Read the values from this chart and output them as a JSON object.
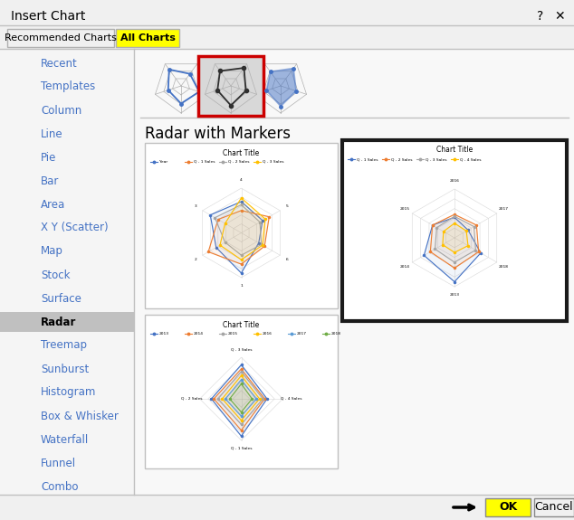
{
  "title": "Insert Chart",
  "tab_recommended": "Recommended Charts",
  "tab_all": "All Charts",
  "sidebar_items": [
    "Recent",
    "Templates",
    "Column",
    "Line",
    "Pie",
    "Bar",
    "Area",
    "X Y (Scatter)",
    "Map",
    "Stock",
    "Surface",
    "Radar",
    "Treemap",
    "Sunburst",
    "Histogram",
    "Box & Whisker",
    "Waterfall",
    "Funnel",
    "Combo"
  ],
  "section_title": "Radar with Markers",
  "chart_title": "Chart Title",
  "bg_dialog": "#f0f0f0",
  "bg_white": "#ffffff",
  "selected_tab_color": "#ffff00",
  "ok_color": "#ffff00",
  "ok_text": "OK",
  "cancel_text": "Cancel",
  "sidebar_selected": "Radar",
  "icon_radar_colors": [
    "#4472c4",
    "#a0a0a0",
    "#2f2f2f"
  ],
  "chart1_colors": [
    "#4472c4",
    "#ed7d31",
    "#a5a5a5",
    "#ffc000"
  ],
  "chart1_legends": [
    "Year",
    "Q - 1 Sales",
    "Q - 2 Sales",
    "Q - 3 Sales"
  ],
  "chart2_colors": [
    "#4472c4",
    "#ed7d31",
    "#a5a5a5",
    "#ffc000"
  ],
  "chart2_legends": [
    "Q - 1 Sales",
    "Q - 2 Sales",
    "Q - 3 Sales",
    "Q - 4 Sales"
  ],
  "chart3_colors": [
    "#4472c4",
    "#ed7d31",
    "#a5a5a5",
    "#ffc000",
    "#5b9bd5",
    "#70ad47"
  ],
  "chart3_legends": [
    "2013",
    "2014",
    "2015",
    "2016",
    "2017",
    "2018"
  ]
}
